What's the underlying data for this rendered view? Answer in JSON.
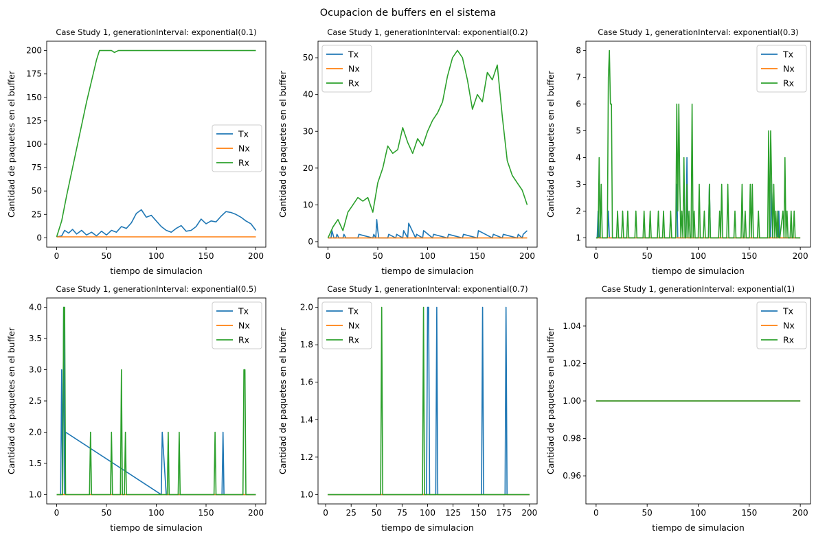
{
  "figure": {
    "suptitle": "Ocupacion de buffers en el sistema"
  },
  "colors": {
    "Tx": "#1f77b4",
    "Nx": "#ff7f0e",
    "Rx": "#2ca02c"
  },
  "chart_data": [
    {
      "type": "line",
      "title": "Case Study 1, generationInterval: exponential(0.1)",
      "xlabel": "tiempo de simulacion",
      "ylabel": "Cantidad de paquetes en el buffer",
      "xlim": [
        -10,
        210
      ],
      "ylim": [
        -10,
        210
      ],
      "xticks": [
        "0",
        "50",
        "100",
        "150",
        "200"
      ],
      "yticks": [
        "0",
        "25",
        "50",
        "75",
        "100",
        "125",
        "150",
        "175",
        "200"
      ],
      "legend": "center-right",
      "series": [
        {
          "name": "Tx",
          "x": [
            0,
            5,
            8,
            12,
            16,
            20,
            25,
            30,
            35,
            40,
            45,
            50,
            55,
            60,
            65,
            70,
            75,
            80,
            85,
            90,
            95,
            100,
            105,
            110,
            115,
            120,
            125,
            130,
            135,
            140,
            145,
            150,
            155,
            160,
            165,
            170,
            175,
            180,
            185,
            190,
            195,
            200
          ],
          "y": [
            1,
            2,
            8,
            5,
            9,
            4,
            8,
            3,
            6,
            2,
            7,
            3,
            8,
            6,
            12,
            10,
            16,
            26,
            30,
            22,
            24,
            18,
            12,
            8,
            6,
            10,
            13,
            7,
            8,
            12,
            20,
            15,
            18,
            17,
            23,
            28,
            27,
            25,
            22,
            18,
            15,
            8
          ]
        },
        {
          "name": "Nx",
          "x": [
            0,
            200
          ],
          "y": [
            1,
            1
          ]
        },
        {
          "name": "Rx",
          "x": [
            0,
            5,
            10,
            20,
            30,
            40,
            43,
            55,
            58,
            60,
            62,
            200
          ],
          "y": [
            1,
            18,
            45,
            95,
            145,
            190,
            200,
            200,
            198,
            199,
            200,
            200
          ]
        }
      ]
    },
    {
      "type": "line",
      "title": "Case Study 1, generationInterval: exponential(0.2)",
      "xlabel": "tiempo de simulacion",
      "ylabel": "Cantidad de paquetes en el buffer",
      "xlim": [
        -10,
        210
      ],
      "ylim": [
        -1.5,
        54.5
      ],
      "xticks": [
        "0",
        "50",
        "100",
        "150",
        "200"
      ],
      "yticks": [
        "0",
        "10",
        "20",
        "30",
        "40",
        "50"
      ],
      "legend": "top-left",
      "series": [
        {
          "name": "Tx",
          "x": [
            0,
            3,
            4,
            6,
            8,
            9,
            11,
            15,
            16,
            18,
            20,
            30,
            31,
            45,
            46,
            48,
            49,
            50,
            51,
            60,
            61,
            68,
            69,
            75,
            76,
            80,
            81,
            88,
            89,
            95,
            96,
            105,
            106,
            120,
            121,
            135,
            136,
            150,
            151,
            165,
            166,
            175,
            176,
            190,
            191,
            195,
            196,
            200
          ],
          "y": [
            1,
            1,
            3,
            1,
            1,
            2,
            1,
            1,
            2,
            1,
            1,
            1,
            2,
            1,
            2,
            1,
            6,
            3,
            1,
            1,
            2,
            1,
            2,
            1,
            3,
            1,
            5,
            1,
            2,
            1,
            3,
            1,
            2,
            1,
            2,
            1,
            2,
            1,
            3,
            1,
            2,
            1,
            2,
            1,
            2,
            1,
            2,
            3
          ]
        },
        {
          "name": "Nx",
          "x": [
            0,
            200
          ],
          "y": [
            1,
            1
          ]
        },
        {
          "name": "Rx",
          "x": [
            0,
            5,
            10,
            15,
            20,
            25,
            30,
            35,
            40,
            45,
            50,
            55,
            60,
            65,
            70,
            75,
            80,
            85,
            90,
            95,
            100,
            105,
            110,
            115,
            120,
            125,
            130,
            135,
            140,
            145,
            150,
            155,
            160,
            165,
            170,
            175,
            180,
            185,
            190,
            195,
            200
          ],
          "y": [
            1,
            4,
            6,
            3,
            8,
            10,
            12,
            11,
            12,
            8,
            16,
            20,
            26,
            24,
            25,
            31,
            27,
            24,
            28,
            26,
            30,
            33,
            35,
            38,
            45,
            50,
            52,
            50,
            44,
            36,
            40,
            38,
            46,
            44,
            48,
            34,
            22,
            18,
            16,
            14,
            10
          ]
        }
      ]
    },
    {
      "type": "line",
      "title": "Case Study 1, generationInterval: exponential(0.3)",
      "xlabel": "tiempo de simulacion",
      "ylabel": "Cantidad de paquetes en el buffer",
      "xlim": [
        -10,
        210
      ],
      "ylim": [
        0.65,
        8.35
      ],
      "xticks": [
        "0",
        "50",
        "100",
        "150",
        "200"
      ],
      "yticks": [
        "1",
        "2",
        "3",
        "4",
        "5",
        "6",
        "7",
        "8"
      ],
      "legend": "top-right",
      "series": [
        {
          "name": "Tx",
          "x": [
            0,
            1,
            2,
            3,
            10,
            11,
            12,
            13,
            78,
            79,
            80,
            81,
            88,
            89,
            90,
            91,
            110,
            111,
            112,
            113,
            171,
            172,
            173,
            174,
            178,
            179,
            180,
            200
          ],
          "y": [
            1,
            1,
            2,
            1,
            1,
            1,
            2,
            1,
            1,
            3,
            1,
            1,
            1,
            4,
            1,
            1,
            1,
            3,
            1,
            1,
            1,
            3,
            1,
            1,
            1,
            2,
            1,
            1
          ]
        },
        {
          "name": "Nx",
          "x": [
            0,
            200
          ],
          "y": [
            1,
            1
          ]
        },
        {
          "name": "Rx",
          "x": [
            0,
            2,
            3,
            4,
            5,
            6,
            7,
            9,
            10,
            11,
            12,
            13,
            14,
            15,
            16,
            17,
            20,
            21,
            22,
            25,
            26,
            27,
            30,
            31,
            32,
            38,
            39,
            40,
            46,
            47,
            48,
            52,
            53,
            54,
            60,
            61,
            62,
            65,
            66,
            67,
            72,
            73,
            74,
            78,
            79,
            80,
            81,
            82,
            83,
            84,
            85,
            86,
            87,
            88,
            89,
            90,
            91,
            92,
            93,
            94,
            95,
            96,
            97,
            100,
            101,
            102,
            105,
            106,
            107,
            110,
            111,
            112,
            120,
            121,
            122,
            123,
            124,
            125,
            128,
            129,
            130,
            135,
            136,
            137,
            142,
            143,
            144,
            145,
            146,
            147,
            150,
            151,
            152,
            153,
            154,
            158,
            159,
            160,
            168,
            169,
            170,
            171,
            172,
            173,
            174,
            175,
            176,
            177,
            178,
            179,
            180,
            183,
            184,
            185,
            186,
            187,
            188,
            190,
            191,
            192,
            193,
            194,
            195,
            200
          ],
          "y": [
            1,
            1,
            4,
            1,
            3,
            1,
            1,
            1,
            1,
            1,
            7,
            8,
            6,
            6,
            1,
            1,
            1,
            2,
            1,
            1,
            2,
            1,
            1,
            2,
            1,
            1,
            2,
            1,
            1,
            2,
            1,
            1,
            2,
            1,
            1,
            2,
            1,
            1,
            2,
            1,
            1,
            2,
            1,
            1,
            6,
            2,
            6,
            3,
            1,
            2,
            1,
            4,
            1,
            1,
            3,
            1,
            2,
            1,
            1,
            6,
            1,
            2,
            1,
            1,
            3,
            1,
            1,
            2,
            1,
            1,
            3,
            1,
            1,
            2,
            1,
            3,
            1,
            1,
            1,
            3,
            1,
            1,
            2,
            1,
            1,
            3,
            1,
            1,
            2,
            1,
            1,
            3,
            1,
            3,
            1,
            1,
            2,
            1,
            1,
            5,
            1,
            5,
            3,
            1,
            3,
            1,
            2,
            1,
            2,
            1,
            1,
            2,
            1,
            4,
            1,
            2,
            1,
            1,
            2,
            1,
            1,
            2,
            1,
            1
          ]
        }
      ]
    },
    {
      "type": "line",
      "title": "Case Study 1, generationInterval: exponential(0.5)",
      "xlabel": "tiempo de simulacion",
      "ylabel": "Cantidad de paquetes en el buffer",
      "xlim": [
        -10,
        210
      ],
      "ylim": [
        0.85,
        4.15
      ],
      "xticks": [
        "0",
        "50",
        "100",
        "150",
        "200"
      ],
      "yticks": [
        "1.0",
        "1.5",
        "2.0",
        "2.5",
        "3.0",
        "3.5",
        "4.0"
      ],
      "legend": "top-right",
      "series": [
        {
          "name": "Tx",
          "x": [
            0,
            4,
            5,
            6,
            7,
            8,
            9,
            105,
            106,
            110,
            111,
            166,
            167,
            168,
            200
          ],
          "y": [
            1,
            1,
            3,
            1,
            4,
            1,
            2,
            1,
            2,
            1,
            1,
            1,
            2,
            1,
            1
          ]
        },
        {
          "name": "Nx",
          "x": [
            0,
            200
          ],
          "y": [
            1,
            1
          ]
        },
        {
          "name": "Rx",
          "x": [
            0,
            6,
            7,
            8,
            9,
            10,
            33,
            34,
            35,
            54,
            55,
            56,
            64,
            65,
            66,
            68,
            69,
            70,
            111,
            112,
            113,
            122,
            123,
            124,
            158,
            159,
            160,
            187,
            188,
            189,
            190,
            191,
            200
          ],
          "y": [
            1,
            1,
            4,
            4,
            1,
            1,
            1,
            2,
            1,
            1,
            2,
            1,
            1,
            3,
            1,
            1,
            2,
            1,
            1,
            2,
            1,
            1,
            2,
            1,
            1,
            2,
            1,
            1,
            3,
            3,
            1,
            1,
            1
          ]
        }
      ]
    },
    {
      "type": "line",
      "title": "Case Study 1, generationInterval: exponential(0.7)",
      "xlabel": "tiempo de simulacion",
      "ylabel": "Cantidad de paquetes en el buffer",
      "xlim": [
        -7.5,
        207.5
      ],
      "ylim": [
        0.95,
        2.05
      ],
      "xticks": [
        "0",
        "25",
        "50",
        "75",
        "100",
        "125",
        "150",
        "175",
        "200"
      ],
      "yticks": [
        "1.0",
        "1.2",
        "1.4",
        "1.6",
        "1.8",
        "2.0"
      ],
      "legend": "top-left",
      "series": [
        {
          "name": "Tx",
          "x": [
            2,
            99,
            100,
            101,
            102,
            108,
            109,
            110,
            153,
            154,
            155,
            176,
            177,
            178,
            200
          ],
          "y": [
            1,
            1,
            2,
            2,
            1,
            1,
            2,
            1,
            1,
            2,
            1,
            1,
            2,
            1,
            1
          ]
        },
        {
          "name": "Nx",
          "x": [
            2,
            200
          ],
          "y": [
            1,
            1
          ]
        },
        {
          "name": "Rx",
          "x": [
            2,
            54,
            55,
            56,
            95,
            96,
            97,
            200
          ],
          "y": [
            1,
            1,
            2,
            1,
            1,
            2,
            1,
            1
          ]
        }
      ]
    },
    {
      "type": "line",
      "title": "Case Study 1, generationInterval: exponential(1)",
      "xlabel": "tiempo de simulacion",
      "ylabel": "Cantidad de paquetes en el buffer",
      "xlim": [
        -10,
        210
      ],
      "ylim": [
        0.945,
        1.055
      ],
      "xticks": [
        "0",
        "50",
        "100",
        "150",
        "200"
      ],
      "yticks": [
        "0.96",
        "0.98",
        "1.00",
        "1.02",
        "1.04"
      ],
      "legend": "top-right",
      "series": [
        {
          "name": "Tx",
          "x": [
            0,
            200
          ],
          "y": [
            1,
            1
          ]
        },
        {
          "name": "Nx",
          "x": [
            0,
            200
          ],
          "y": [
            1,
            1
          ]
        },
        {
          "name": "Rx",
          "x": [
            0,
            200
          ],
          "y": [
            1,
            1
          ]
        }
      ]
    }
  ]
}
